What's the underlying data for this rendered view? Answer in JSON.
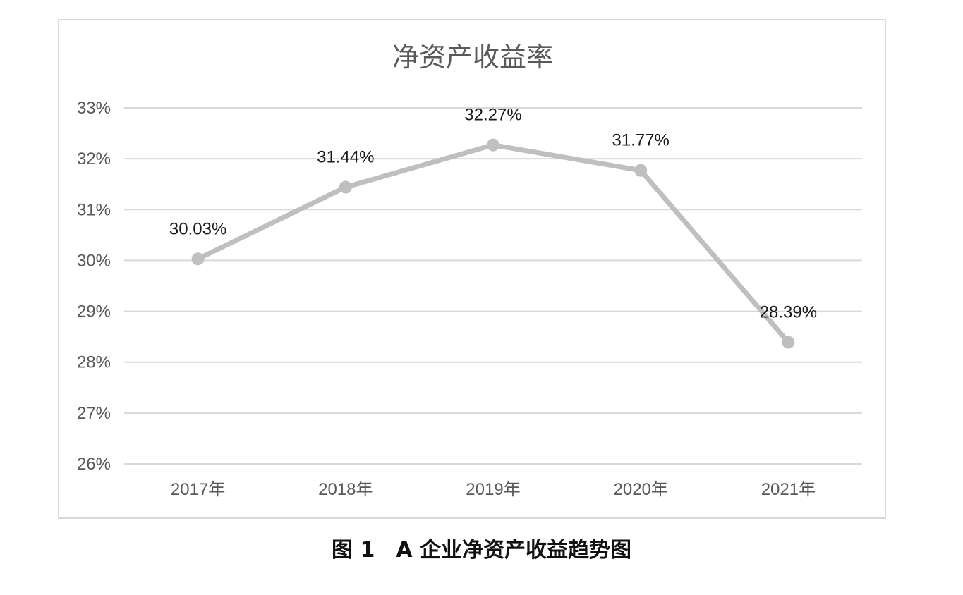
{
  "chart_data": {
    "type": "line",
    "title": "净资产收益率",
    "categories": [
      "2017年",
      "2018年",
      "2019年",
      "2020年",
      "2021年"
    ],
    "series": [
      {
        "values": [
          30.03,
          31.44,
          32.27,
          31.77,
          28.39
        ],
        "data_labels": [
          "30.03%",
          "31.44%",
          "32.27%",
          "31.77%",
          "28.39%"
        ],
        "color": "#bfbfbf"
      }
    ],
    "ylim": [
      26,
      33
    ],
    "yticks": [
      26,
      27,
      28,
      29,
      30,
      31,
      32,
      33
    ],
    "ytick_labels": [
      "26%",
      "27%",
      "28%",
      "29%",
      "30%",
      "31%",
      "32%",
      "33%"
    ],
    "xlabel": "",
    "ylabel": "",
    "grid": true,
    "legend": false,
    "gridline_color": "#d9d9d9"
  },
  "caption": "图 1　A 企业净资产收益趋势图"
}
